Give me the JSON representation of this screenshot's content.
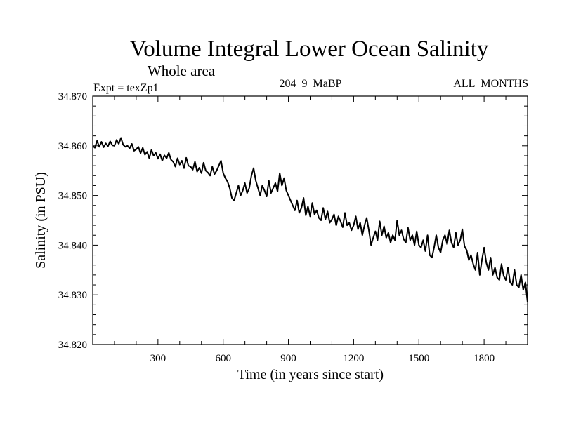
{
  "chart_data": {
    "type": "line",
    "title": "Volume Integral Lower Ocean Salinity",
    "subtitle": "Whole area",
    "annotations": {
      "left": "Expt = texZp1",
      "center": "204_9_MaBP",
      "right": "ALL_MONTHS"
    },
    "xlabel": "Time (in years since start)",
    "ylabel": "Salinity (in PSU)",
    "xlim": [
      0,
      2000
    ],
    "ylim": [
      34.82,
      34.87
    ],
    "xticks": [
      300,
      600,
      900,
      1200,
      1500,
      1800
    ],
    "xtick_labels": [
      "300",
      "600",
      "900",
      "1200",
      "1500",
      "1800"
    ],
    "x_minor_step": 100,
    "yticks": [
      34.82,
      34.83,
      34.84,
      34.85,
      34.86,
      34.87
    ],
    "ytick_labels": [
      "34.820",
      "34.830",
      "34.840",
      "34.850",
      "34.860",
      "34.870"
    ],
    "y_minor_step": 0.002,
    "grid": false,
    "legend": "none",
    "line_color": "#000000",
    "series": [
      {
        "name": "Salinity",
        "x_step": 10,
        "x_start": 0,
        "values": [
          34.86,
          34.8596,
          34.861,
          34.8598,
          34.8608,
          34.8597,
          34.8605,
          34.8599,
          34.8609,
          34.8601,
          34.86,
          34.8612,
          34.8604,
          34.8616,
          34.8602,
          34.8598,
          34.86,
          34.8595,
          34.8604,
          34.859,
          34.8593,
          34.8598,
          34.8585,
          34.8596,
          34.8582,
          34.8588,
          34.8575,
          34.8592,
          34.858,
          34.8586,
          34.8574,
          34.8583,
          34.857,
          34.8581,
          34.8575,
          34.8586,
          34.8572,
          34.8568,
          34.8558,
          34.8575,
          34.8562,
          34.857,
          34.8555,
          34.8576,
          34.856,
          34.8558,
          34.8552,
          34.8568,
          34.8548,
          34.8556,
          34.8545,
          34.8566,
          34.855,
          34.8546,
          34.854,
          34.8558,
          34.8543,
          34.855,
          34.856,
          34.857,
          34.8545,
          34.8535,
          34.8528,
          34.8515,
          34.8495,
          34.849,
          34.8505,
          34.852,
          34.85,
          34.851,
          34.8525,
          34.8505,
          34.8515,
          34.854,
          34.8555,
          34.853,
          34.8515,
          34.85,
          34.852,
          34.851,
          34.8498,
          34.853,
          34.8505,
          34.8515,
          34.8525,
          34.8508,
          34.8545,
          34.852,
          34.8535,
          34.851,
          34.85,
          34.849,
          34.848,
          34.847,
          34.849,
          34.8465,
          34.8475,
          34.8495,
          34.846,
          34.8478,
          34.8458,
          34.8485,
          34.8462,
          34.847,
          34.8455,
          34.845,
          34.8475,
          34.8452,
          34.8468,
          34.8445,
          34.8452,
          34.8462,
          34.844,
          34.8458,
          34.8448,
          34.8436,
          34.8465,
          34.844,
          34.8445,
          34.843,
          34.844,
          34.8458,
          34.8432,
          34.8445,
          34.842,
          34.844,
          34.8455,
          34.843,
          34.84,
          34.8415,
          34.8428,
          34.841,
          34.8448,
          34.842,
          34.8438,
          34.8415,
          34.8425,
          34.8405,
          34.842,
          34.841,
          34.845,
          34.842,
          34.843,
          34.8412,
          34.8405,
          34.8435,
          34.841,
          34.842,
          34.84,
          34.8428,
          34.84,
          34.8395,
          34.841,
          34.8388,
          34.842,
          34.838,
          34.8375,
          34.8395,
          34.842,
          34.8395,
          34.8385,
          34.841,
          34.842,
          34.8402,
          34.843,
          34.8405,
          34.8395,
          34.8425,
          34.84,
          34.841,
          34.8432,
          34.8398,
          34.839,
          34.837,
          34.838,
          34.8362,
          34.835,
          34.8385,
          34.834,
          34.837,
          34.8395,
          34.8365,
          34.835,
          34.8375,
          34.834,
          34.8355,
          34.8335,
          34.833,
          34.8362,
          34.8338,
          34.833,
          34.8355,
          34.8325,
          34.832,
          34.835,
          34.832,
          34.8315,
          34.834,
          34.831,
          34.8325,
          34.8285
        ]
      }
    ]
  }
}
